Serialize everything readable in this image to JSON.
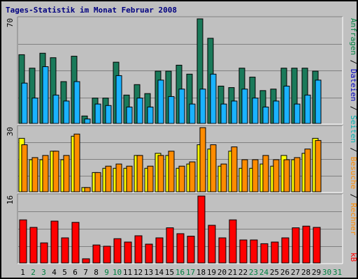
{
  "title": "Tages-Statistik im Monat Februar 2008",
  "colors": {
    "background": "#c0c0c0",
    "panel": "#c0c0c0",
    "grid": "#808080",
    "anfragen": "#1a7a5a",
    "dateien": "#1ab2ff",
    "seiten": "#ffd700",
    "besuche": "#ff8c00",
    "rechner": "#ffff00",
    "kb": "#ff0000",
    "day_weekday": "#000000",
    "day_weekend": "#008040"
  },
  "legend": {
    "top_right": [
      {
        "text": "Anfragen",
        "color": "#008040"
      },
      {
        "text": " / ",
        "color": "#000000"
      },
      {
        "text": "Dateien",
        "color": "#0000c0"
      },
      {
        "text": " / ",
        "color": "#000000"
      },
      {
        "text": "Seiten",
        "color": "#00b0b0"
      },
      {
        "text": " / ",
        "color": "#000000"
      },
      {
        "text": "Besuche",
        "color": "#ff8c00"
      },
      {
        "text": " / ",
        "color": "#000000"
      },
      {
        "text": "Rechner",
        "color": "#ff8c00"
      }
    ],
    "bottom_right": [
      {
        "text": "kB",
        "color": "#ff0000"
      }
    ]
  },
  "chart_data": [
    {
      "type": "bar",
      "name": "top",
      "ylim": [
        0,
        70
      ],
      "ytick_label": "70",
      "categories": [
        "1",
        "2",
        "3",
        "4",
        "5",
        "6",
        "7",
        "8",
        "9",
        "10",
        "11",
        "12",
        "13",
        "14",
        "15",
        "16",
        "17",
        "18",
        "19",
        "20",
        "21",
        "22",
        "23",
        "24",
        "25",
        "26",
        "27",
        "28",
        "29",
        "30",
        "31"
      ],
      "series": [
        {
          "name": "Anfragen",
          "values": [
            46,
            37,
            47,
            44,
            28,
            45,
            5,
            17,
            17,
            41,
            19,
            26,
            20,
            35,
            35,
            39,
            33,
            70,
            57,
            25,
            24,
            37,
            31,
            22,
            23,
            37,
            37,
            37,
            35,
            0,
            0
          ]
        },
        {
          "name": "Dateien",
          "values": [
            27,
            17,
            38,
            19,
            15,
            28,
            3,
            13,
            12,
            32,
            11,
            17,
            11,
            29,
            18,
            23,
            13,
            23,
            33,
            13,
            15,
            23,
            17,
            11,
            15,
            25,
            13,
            19,
            29,
            0,
            0
          ]
        }
      ]
    },
    {
      "type": "bar",
      "name": "middle",
      "ylim": [
        0,
        30
      ],
      "ytick_label": "30",
      "categories": [
        "1",
        "2",
        "3",
        "4",
        "5",
        "6",
        "7",
        "8",
        "9",
        "10",
        "11",
        "12",
        "13",
        "14",
        "15",
        "16",
        "17",
        "18",
        "19",
        "20",
        "21",
        "22",
        "23",
        "24",
        "25",
        "26",
        "27",
        "28",
        "29",
        "30",
        "31"
      ],
      "series": [
        {
          "name": "Rechner",
          "values": [
            25,
            15,
            15,
            19,
            15,
            26,
            2,
            9,
            11,
            11,
            11,
            17,
            11,
            18,
            17,
            11,
            13,
            22,
            20,
            12,
            19,
            11,
            11,
            13,
            12,
            17,
            15,
            18,
            25,
            0,
            0
          ]
        },
        {
          "name": "Besuche",
          "values": [
            22,
            16,
            17,
            19,
            17,
            27,
            2,
            9,
            12,
            13,
            12,
            17,
            12,
            17,
            19,
            12,
            14,
            30,
            22,
            13,
            21,
            15,
            15,
            17,
            15,
            15,
            16,
            20,
            24,
            0,
            0
          ]
        }
      ]
    },
    {
      "type": "bar",
      "name": "bottom",
      "ylim": [
        0,
        16
      ],
      "ytick_label": "16",
      "categories": [
        "1",
        "2",
        "3",
        "4",
        "5",
        "6",
        "7",
        "8",
        "9",
        "10",
        "11",
        "12",
        "13",
        "14",
        "15",
        "16",
        "17",
        "18",
        "19",
        "20",
        "21",
        "22",
        "23",
        "24",
        "25",
        "26",
        "27",
        "28",
        "29",
        "30",
        "31"
      ],
      "series": [
        {
          "name": "kB",
          "values": [
            10.3,
            8.5,
            4.8,
            10.0,
            6.0,
            9.7,
            1.0,
            4.3,
            4.0,
            5.8,
            5.0,
            6.5,
            4.5,
            6.0,
            8.4,
            7.0,
            6.4,
            16.0,
            9.0,
            6.0,
            10.3,
            5.5,
            5.5,
            4.6,
            5.0,
            6.0,
            8.4,
            8.8,
            8.5,
            0,
            0
          ]
        }
      ]
    }
  ],
  "weekend_days": [
    2,
    3,
    9,
    10,
    16,
    17,
    23,
    24,
    30,
    31
  ]
}
